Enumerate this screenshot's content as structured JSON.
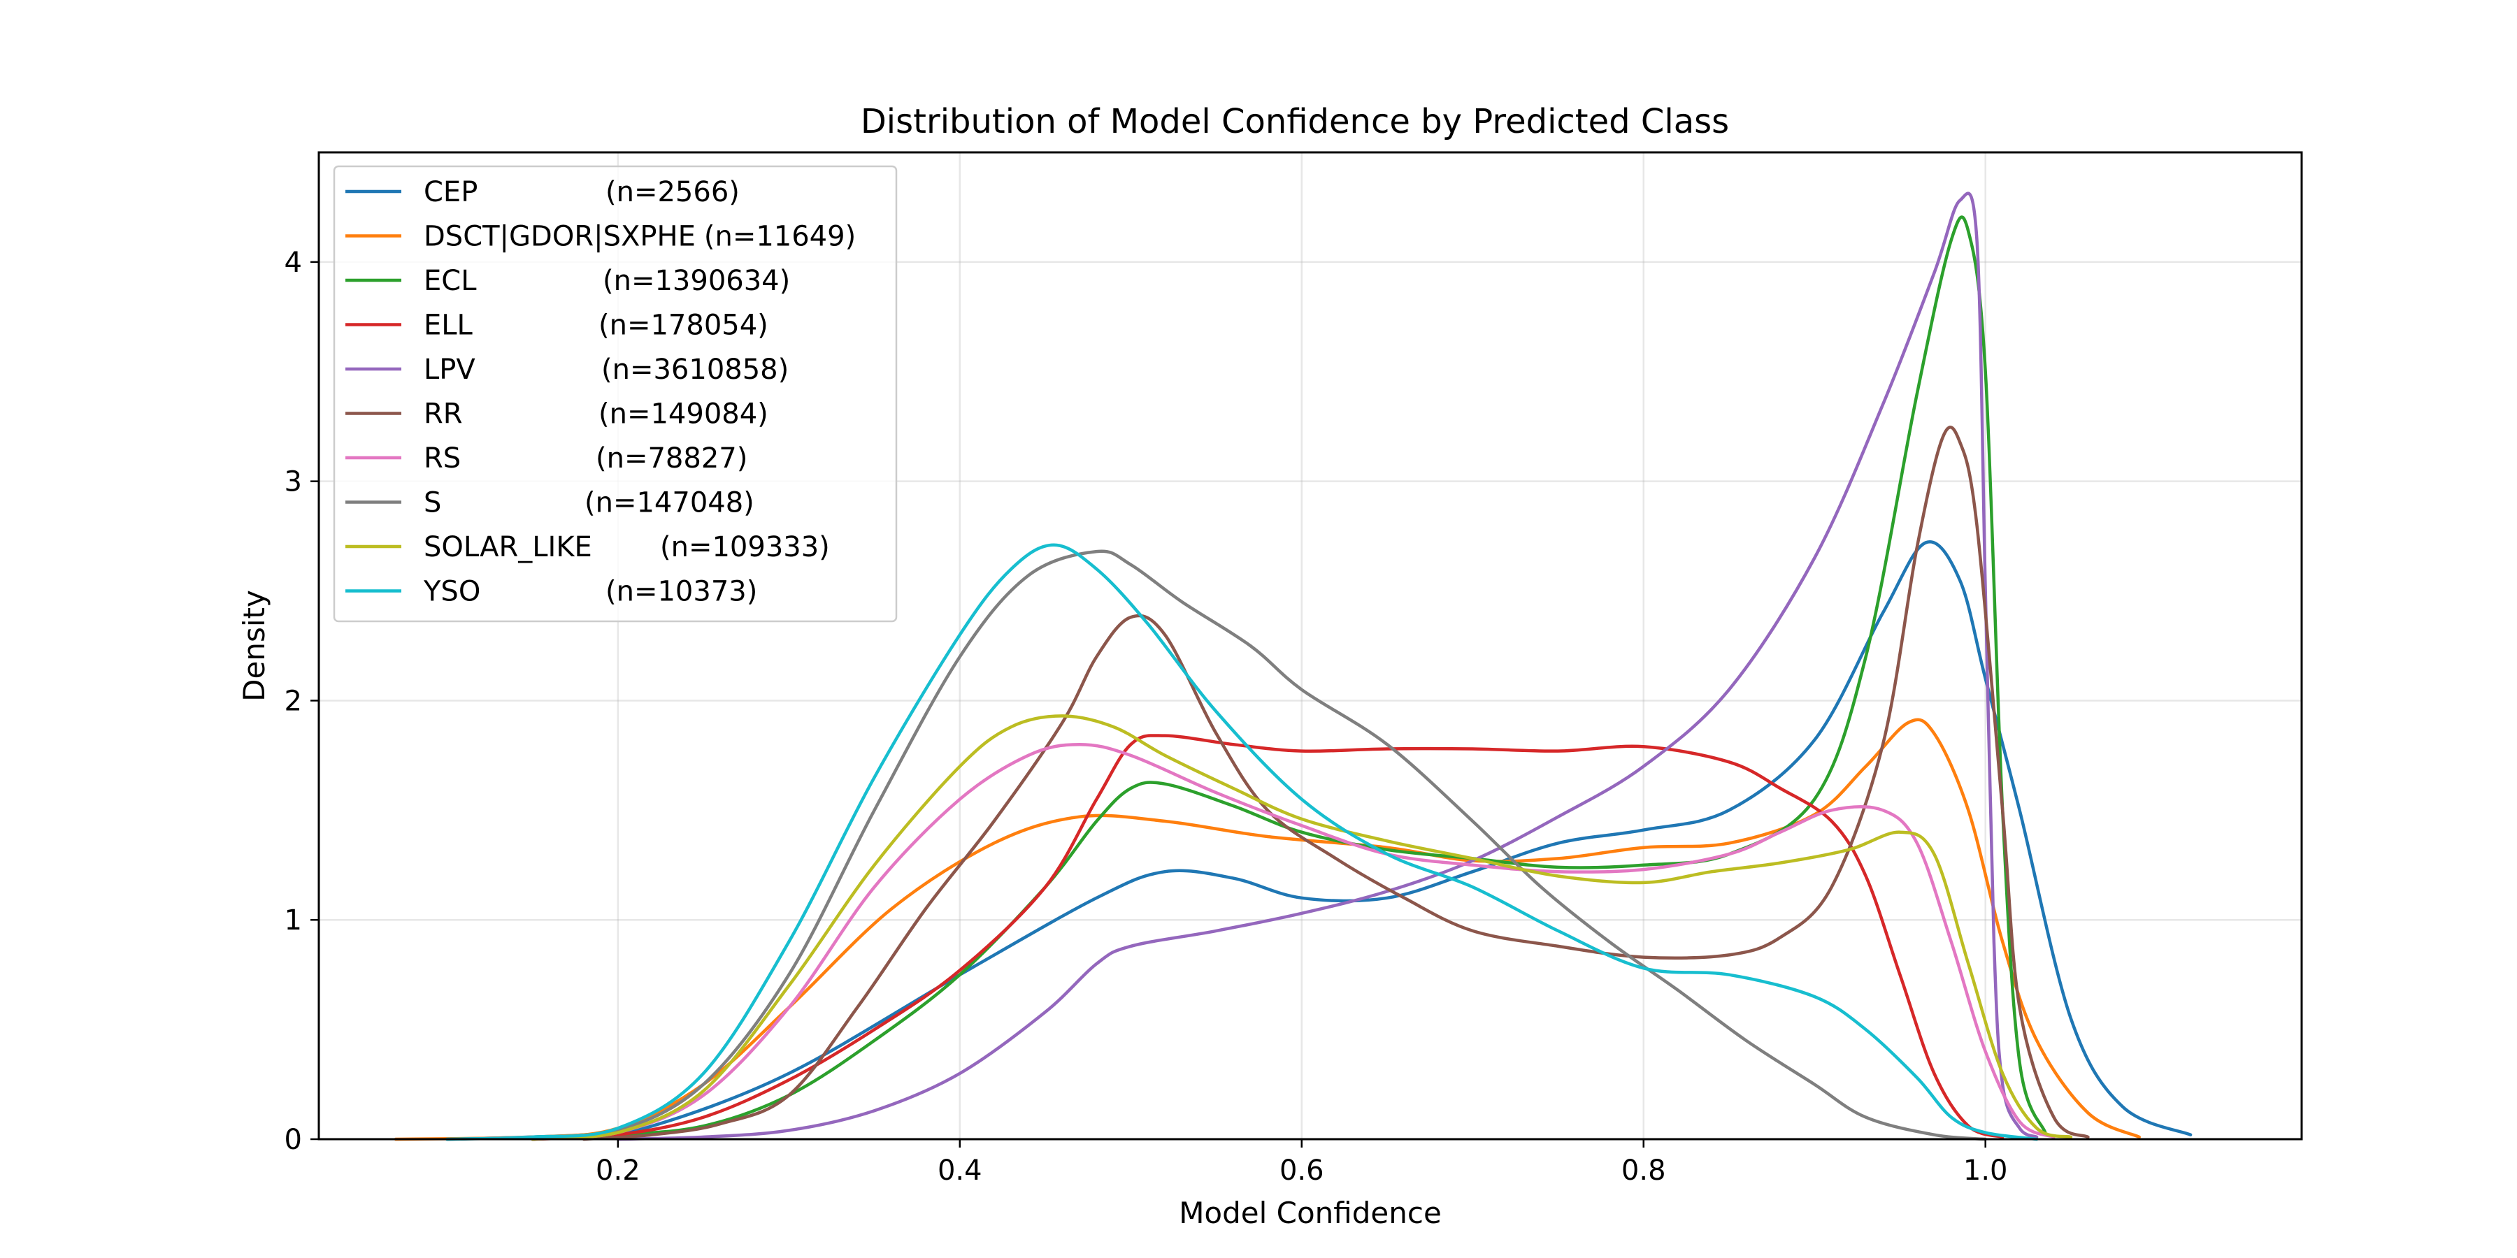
{
  "chart_data": {
    "type": "line",
    "title": "Distribution of Model Confidence by Predicted Class",
    "xlabel": "Model Confidence",
    "ylabel": "Density",
    "xlim": [
      0.025,
      1.185
    ],
    "ylim": [
      0,
      4.5
    ],
    "xticks": [
      0.2,
      0.4,
      0.6,
      0.8,
      1.0
    ],
    "xtick_labels": [
      "0.2",
      "0.4",
      "0.6",
      "0.8",
      "1.0"
    ],
    "yticks": [
      0,
      1,
      2,
      3,
      4
    ],
    "ytick_labels": [
      "0",
      "1",
      "2",
      "3",
      "4"
    ],
    "grid": true,
    "legend_position": "upper-left",
    "series": [
      {
        "name": "CEP",
        "count": "(n=2566)",
        "color": "#1f77b4",
        "points": [
          [
            0.1,
            0
          ],
          [
            0.18,
            0.02
          ],
          [
            0.22,
            0.06
          ],
          [
            0.3,
            0.3
          ],
          [
            0.4,
            0.75
          ],
          [
            0.48,
            1.1
          ],
          [
            0.52,
            1.22
          ],
          [
            0.56,
            1.19
          ],
          [
            0.6,
            1.1
          ],
          [
            0.65,
            1.1
          ],
          [
            0.7,
            1.22
          ],
          [
            0.75,
            1.35
          ],
          [
            0.8,
            1.41
          ],
          [
            0.85,
            1.5
          ],
          [
            0.9,
            1.82
          ],
          [
            0.94,
            2.4
          ],
          [
            0.965,
            2.72
          ],
          [
            0.985,
            2.55
          ],
          [
            1.0,
            2.1
          ],
          [
            1.02,
            1.5
          ],
          [
            1.05,
            0.55
          ],
          [
            1.08,
            0.15
          ],
          [
            1.12,
            0.02
          ]
        ]
      },
      {
        "name": "DSCT|GDOR|SXPHE",
        "count": "(n=11649)",
        "color": "#ff7f0e",
        "points": [
          [
            0.07,
            0
          ],
          [
            0.15,
            0.01
          ],
          [
            0.2,
            0.05
          ],
          [
            0.25,
            0.25
          ],
          [
            0.3,
            0.6
          ],
          [
            0.36,
            1.05
          ],
          [
            0.42,
            1.35
          ],
          [
            0.47,
            1.47
          ],
          [
            0.52,
            1.45
          ],
          [
            0.58,
            1.38
          ],
          [
            0.65,
            1.33
          ],
          [
            0.7,
            1.27
          ],
          [
            0.75,
            1.28
          ],
          [
            0.8,
            1.33
          ],
          [
            0.85,
            1.35
          ],
          [
            0.9,
            1.48
          ],
          [
            0.93,
            1.7
          ],
          [
            0.955,
            1.9
          ],
          [
            0.97,
            1.85
          ],
          [
            0.99,
            1.5
          ],
          [
            1.01,
            0.9
          ],
          [
            1.03,
            0.45
          ],
          [
            1.06,
            0.12
          ],
          [
            1.09,
            0.01
          ]
        ]
      },
      {
        "name": "ECL",
        "count": "(n=1390634)",
        "color": "#2ca02c",
        "points": [
          [
            0.15,
            0
          ],
          [
            0.2,
            0.02
          ],
          [
            0.25,
            0.06
          ],
          [
            0.3,
            0.2
          ],
          [
            0.35,
            0.45
          ],
          [
            0.4,
            0.75
          ],
          [
            0.45,
            1.15
          ],
          [
            0.48,
            1.45
          ],
          [
            0.5,
            1.6
          ],
          [
            0.52,
            1.62
          ],
          [
            0.56,
            1.52
          ],
          [
            0.6,
            1.4
          ],
          [
            0.65,
            1.32
          ],
          [
            0.7,
            1.28
          ],
          [
            0.75,
            1.24
          ],
          [
            0.8,
            1.25
          ],
          [
            0.85,
            1.3
          ],
          [
            0.9,
            1.55
          ],
          [
            0.93,
            2.2
          ],
          [
            0.96,
            3.4
          ],
          [
            0.98,
            4.1
          ],
          [
            0.99,
            4.14
          ],
          [
            1.0,
            3.5
          ],
          [
            1.01,
            1.5
          ],
          [
            1.02,
            0.35
          ],
          [
            1.035,
            0.03
          ]
        ]
      },
      {
        "name": "ELL",
        "count": "(n=178054)",
        "color": "#d62728",
        "points": [
          [
            0.15,
            0
          ],
          [
            0.2,
            0.02
          ],
          [
            0.25,
            0.1
          ],
          [
            0.3,
            0.27
          ],
          [
            0.35,
            0.5
          ],
          [
            0.4,
            0.77
          ],
          [
            0.45,
            1.15
          ],
          [
            0.48,
            1.55
          ],
          [
            0.5,
            1.8
          ],
          [
            0.52,
            1.84
          ],
          [
            0.56,
            1.8
          ],
          [
            0.6,
            1.77
          ],
          [
            0.65,
            1.78
          ],
          [
            0.7,
            1.78
          ],
          [
            0.75,
            1.77
          ],
          [
            0.8,
            1.79
          ],
          [
            0.85,
            1.72
          ],
          [
            0.88,
            1.6
          ],
          [
            0.91,
            1.45
          ],
          [
            0.93,
            1.2
          ],
          [
            0.95,
            0.75
          ],
          [
            0.97,
            0.3
          ],
          [
            0.99,
            0.06
          ],
          [
            1.01,
            0.01
          ]
        ]
      },
      {
        "name": "LPV",
        "count": "(n=3610858)",
        "color": "#9467bd",
        "points": [
          [
            0.2,
            0
          ],
          [
            0.25,
            0.01
          ],
          [
            0.3,
            0.04
          ],
          [
            0.35,
            0.13
          ],
          [
            0.4,
            0.3
          ],
          [
            0.45,
            0.58
          ],
          [
            0.48,
            0.8
          ],
          [
            0.5,
            0.88
          ],
          [
            0.55,
            0.95
          ],
          [
            0.6,
            1.03
          ],
          [
            0.65,
            1.13
          ],
          [
            0.7,
            1.27
          ],
          [
            0.75,
            1.47
          ],
          [
            0.8,
            1.7
          ],
          [
            0.85,
            2.05
          ],
          [
            0.9,
            2.65
          ],
          [
            0.94,
            3.35
          ],
          [
            0.97,
            3.95
          ],
          [
            0.985,
            4.28
          ],
          [
            0.995,
            4.1
          ],
          [
            1.0,
            2.5
          ],
          [
            1.005,
            0.9
          ],
          [
            1.01,
            0.25
          ],
          [
            1.02,
            0.05
          ],
          [
            1.03,
            0.01
          ]
        ]
      },
      {
        "name": "RR",
        "count": "(n=149084)",
        "color": "#8c564b",
        "points": [
          [
            0.18,
            0
          ],
          [
            0.22,
            0.02
          ],
          [
            0.26,
            0.07
          ],
          [
            0.3,
            0.2
          ],
          [
            0.34,
            0.6
          ],
          [
            0.38,
            1.05
          ],
          [
            0.42,
            1.45
          ],
          [
            0.46,
            1.9
          ],
          [
            0.48,
            2.2
          ],
          [
            0.5,
            2.38
          ],
          [
            0.52,
            2.3
          ],
          [
            0.55,
            1.85
          ],
          [
            0.58,
            1.5
          ],
          [
            0.62,
            1.28
          ],
          [
            0.66,
            1.1
          ],
          [
            0.7,
            0.95
          ],
          [
            0.75,
            0.88
          ],
          [
            0.8,
            0.83
          ],
          [
            0.85,
            0.84
          ],
          [
            0.88,
            0.92
          ],
          [
            0.91,
            1.15
          ],
          [
            0.94,
            1.8
          ],
          [
            0.96,
            2.7
          ],
          [
            0.975,
            3.2
          ],
          [
            0.985,
            3.18
          ],
          [
            0.995,
            2.8
          ],
          [
            1.01,
            1.5
          ],
          [
            1.02,
            0.6
          ],
          [
            1.04,
            0.1
          ],
          [
            1.06,
            0.01
          ]
        ]
      },
      {
        "name": "RS",
        "count": "(n=78827)",
        "color": "#e377c2",
        "points": [
          [
            0.15,
            0
          ],
          [
            0.2,
            0.03
          ],
          [
            0.25,
            0.2
          ],
          [
            0.3,
            0.6
          ],
          [
            0.35,
            1.15
          ],
          [
            0.4,
            1.55
          ],
          [
            0.44,
            1.75
          ],
          [
            0.47,
            1.8
          ],
          [
            0.5,
            1.75
          ],
          [
            0.55,
            1.58
          ],
          [
            0.6,
            1.43
          ],
          [
            0.65,
            1.3
          ],
          [
            0.7,
            1.25
          ],
          [
            0.75,
            1.22
          ],
          [
            0.8,
            1.23
          ],
          [
            0.85,
            1.3
          ],
          [
            0.88,
            1.4
          ],
          [
            0.91,
            1.5
          ],
          [
            0.94,
            1.5
          ],
          [
            0.96,
            1.35
          ],
          [
            0.98,
            0.9
          ],
          [
            1.0,
            0.4
          ],
          [
            1.02,
            0.08
          ],
          [
            1.04,
            0.01
          ]
        ]
      },
      {
        "name": "S",
        "count": "(n=147048)",
        "color": "#7f7f7f",
        "points": [
          [
            0.1,
            0
          ],
          [
            0.15,
            0.01
          ],
          [
            0.2,
            0.04
          ],
          [
            0.25,
            0.25
          ],
          [
            0.3,
            0.75
          ],
          [
            0.35,
            1.5
          ],
          [
            0.4,
            2.2
          ],
          [
            0.44,
            2.57
          ],
          [
            0.48,
            2.68
          ],
          [
            0.5,
            2.62
          ],
          [
            0.53,
            2.45
          ],
          [
            0.57,
            2.25
          ],
          [
            0.6,
            2.05
          ],
          [
            0.65,
            1.8
          ],
          [
            0.7,
            1.45
          ],
          [
            0.74,
            1.15
          ],
          [
            0.78,
            0.9
          ],
          [
            0.82,
            0.68
          ],
          [
            0.86,
            0.45
          ],
          [
            0.9,
            0.25
          ],
          [
            0.93,
            0.1
          ],
          [
            0.97,
            0.02
          ],
          [
            1.0,
            0
          ]
        ]
      },
      {
        "name": "SOLAR_LIKE",
        "count": "(n=109333)",
        "color": "#bcbd22",
        "points": [
          [
            0.15,
            0
          ],
          [
            0.2,
            0.03
          ],
          [
            0.25,
            0.22
          ],
          [
            0.3,
            0.7
          ],
          [
            0.35,
            1.25
          ],
          [
            0.4,
            1.7
          ],
          [
            0.43,
            1.88
          ],
          [
            0.46,
            1.93
          ],
          [
            0.49,
            1.88
          ],
          [
            0.52,
            1.75
          ],
          [
            0.56,
            1.6
          ],
          [
            0.6,
            1.46
          ],
          [
            0.65,
            1.36
          ],
          [
            0.7,
            1.28
          ],
          [
            0.75,
            1.2
          ],
          [
            0.8,
            1.17
          ],
          [
            0.84,
            1.22
          ],
          [
            0.88,
            1.26
          ],
          [
            0.92,
            1.32
          ],
          [
            0.95,
            1.4
          ],
          [
            0.97,
            1.3
          ],
          [
            0.99,
            0.8
          ],
          [
            1.01,
            0.3
          ],
          [
            1.03,
            0.05
          ],
          [
            1.05,
            0.01
          ]
        ]
      },
      {
        "name": "YSO",
        "count": "(n=10373)",
        "color": "#17becf",
        "points": [
          [
            0.1,
            0
          ],
          [
            0.15,
            0.01
          ],
          [
            0.2,
            0.05
          ],
          [
            0.25,
            0.3
          ],
          [
            0.3,
            0.9
          ],
          [
            0.35,
            1.65
          ],
          [
            0.4,
            2.3
          ],
          [
            0.43,
            2.6
          ],
          [
            0.455,
            2.71
          ],
          [
            0.48,
            2.6
          ],
          [
            0.51,
            2.35
          ],
          [
            0.55,
            1.95
          ],
          [
            0.6,
            1.55
          ],
          [
            0.65,
            1.3
          ],
          [
            0.7,
            1.15
          ],
          [
            0.75,
            0.95
          ],
          [
            0.8,
            0.78
          ],
          [
            0.85,
            0.75
          ],
          [
            0.9,
            0.65
          ],
          [
            0.93,
            0.5
          ],
          [
            0.96,
            0.28
          ],
          [
            0.98,
            0.1
          ],
          [
            1.0,
            0.03
          ],
          [
            1.03,
            0
          ]
        ]
      }
    ]
  }
}
